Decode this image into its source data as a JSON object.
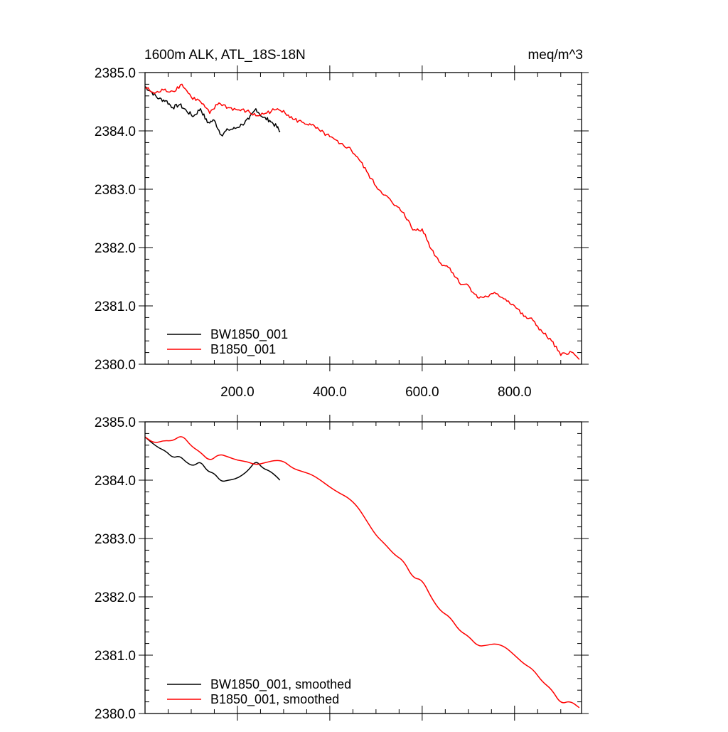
{
  "chart_data": [
    {
      "type": "line",
      "title_left": "1600m ALK, ATL_18S-18N",
      "title_right": "meq/m^3",
      "xlim": [
        0,
        945
      ],
      "ylim": [
        2380,
        2385
      ],
      "x_ticks": [
        200,
        400,
        600,
        800
      ],
      "x_tick_labels": [
        "200.0",
        "400.0",
        "600.0",
        "800.0"
      ],
      "y_ticks": [
        2380,
        2381,
        2382,
        2383,
        2384,
        2385
      ],
      "y_tick_labels": [
        "2380.0",
        "2381.0",
        "2382.0",
        "2383.0",
        "2384.0",
        "2385.0"
      ],
      "legend_position": "bottom-left",
      "series": [
        {
          "name": "BW1850_001",
          "color": "#000000",
          "x": [
            0,
            15,
            30,
            45,
            60,
            75,
            90,
            105,
            120,
            135,
            150,
            165,
            180,
            195,
            210,
            225,
            240,
            255,
            270,
            285,
            292
          ],
          "y": [
            2384.76,
            2384.66,
            2384.55,
            2384.52,
            2384.4,
            2384.45,
            2384.34,
            2384.25,
            2384.38,
            2384.14,
            2384.18,
            2383.93,
            2384.02,
            2384.04,
            2384.11,
            2384.2,
            2384.38,
            2384.23,
            2384.18,
            2384.07,
            2384.0
          ]
        },
        {
          "name": "B1850_001",
          "color": "#ff0000",
          "x": [
            0,
            20,
            40,
            60,
            80,
            100,
            120,
            140,
            160,
            180,
            200,
            220,
            240,
            260,
            280,
            300,
            320,
            340,
            360,
            380,
            400,
            420,
            440,
            460,
            480,
            500,
            520,
            540,
            560,
            580,
            600,
            620,
            640,
            660,
            680,
            700,
            720,
            740,
            760,
            780,
            800,
            820,
            840,
            860,
            880,
            900,
            920,
            940
          ],
          "y": [
            2384.75,
            2384.64,
            2384.7,
            2384.68,
            2384.8,
            2384.58,
            2384.5,
            2384.3,
            2384.48,
            2384.4,
            2384.36,
            2384.34,
            2384.26,
            2384.3,
            2384.36,
            2384.35,
            2384.2,
            2384.15,
            2384.1,
            2383.99,
            2383.9,
            2383.78,
            2383.72,
            2383.55,
            2383.3,
            2383.05,
            2382.9,
            2382.72,
            2382.6,
            2382.3,
            2382.32,
            2381.97,
            2381.73,
            2381.65,
            2381.4,
            2381.35,
            2381.14,
            2381.16,
            2381.21,
            2381.12,
            2381.0,
            2380.82,
            2380.75,
            2380.55,
            2380.4,
            2380.15,
            2380.22,
            2380.08
          ]
        }
      ]
    },
    {
      "type": "line",
      "xlim": [
        0,
        945
      ],
      "ylim": [
        2380,
        2385
      ],
      "y_ticks": [
        2380,
        2381,
        2382,
        2383,
        2384,
        2385
      ],
      "y_tick_labels": [
        "2380.0",
        "2381.0",
        "2382.0",
        "2383.0",
        "2384.0",
        "2385.0"
      ],
      "legend_position": "bottom-left",
      "series": [
        {
          "name": "BW1850_001, smoothed",
          "color": "#000000",
          "x": [
            0,
            15,
            30,
            45,
            60,
            75,
            90,
            105,
            120,
            135,
            150,
            165,
            180,
            195,
            210,
            225,
            240,
            255,
            270,
            285,
            292
          ],
          "y": [
            2384.74,
            2384.64,
            2384.55,
            2384.5,
            2384.38,
            2384.42,
            2384.3,
            2384.24,
            2384.33,
            2384.15,
            2384.12,
            2383.97,
            2384.0,
            2384.02,
            2384.08,
            2384.18,
            2384.34,
            2384.2,
            2384.16,
            2384.06,
            2384.0
          ]
        },
        {
          "name": "B1850_001, smoothed",
          "color": "#ff0000",
          "x": [
            0,
            20,
            40,
            60,
            80,
            100,
            120,
            140,
            160,
            180,
            200,
            220,
            240,
            260,
            280,
            300,
            320,
            340,
            360,
            380,
            400,
            420,
            440,
            460,
            480,
            500,
            520,
            540,
            560,
            580,
            600,
            620,
            640,
            660,
            680,
            700,
            720,
            740,
            760,
            780,
            800,
            820,
            840,
            860,
            880,
            900,
            920,
            940
          ],
          "y": [
            2384.74,
            2384.63,
            2384.68,
            2384.67,
            2384.78,
            2384.58,
            2384.48,
            2384.32,
            2384.45,
            2384.4,
            2384.34,
            2384.32,
            2384.26,
            2384.3,
            2384.34,
            2384.33,
            2384.2,
            2384.15,
            2384.1,
            2384.0,
            2383.88,
            2383.78,
            2383.7,
            2383.55,
            2383.3,
            2383.05,
            2382.9,
            2382.72,
            2382.62,
            2382.32,
            2382.3,
            2381.98,
            2381.75,
            2381.66,
            2381.42,
            2381.33,
            2381.15,
            2381.17,
            2381.2,
            2381.14,
            2381.0,
            2380.85,
            2380.76,
            2380.54,
            2380.42,
            2380.16,
            2380.22,
            2380.1
          ]
        }
      ]
    }
  ]
}
